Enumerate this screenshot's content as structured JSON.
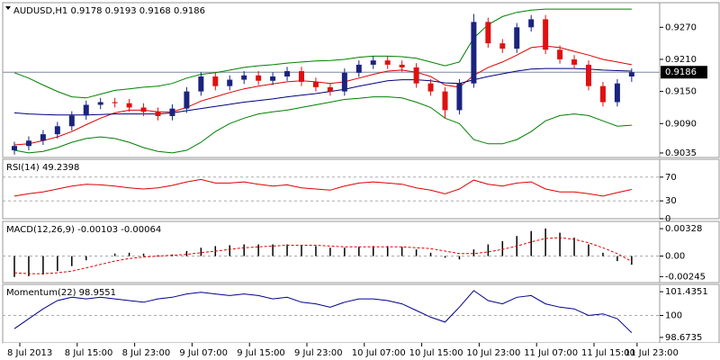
{
  "chart_data": [
    {
      "type": "candlestick",
      "title": "AUDUSD,H1  0.9178 0.9193 0.9168 0.9186",
      "categories": [
        "8 Jul 2013",
        null,
        null,
        null,
        "8 Jul 15:00",
        null,
        null,
        null,
        "8 Jul 23:00",
        null,
        null,
        null,
        "9 Jul 07:00",
        null,
        null,
        null,
        "9 Jul 15:00",
        null,
        null,
        null,
        "9 Jul 23:00",
        null,
        null,
        null,
        "10 Jul 07:00",
        null,
        null,
        null,
        "10 Jul 15:00",
        null,
        null,
        null,
        "10 Jul 23:00",
        null,
        null,
        null,
        "11 Jul 07:00",
        null,
        null,
        null,
        "11 Jul 15:00",
        null,
        null,
        "11 Jul 23:00"
      ],
      "open": [
        0.904,
        0.9048,
        0.9058,
        0.907,
        0.9085,
        0.9105,
        0.9125,
        0.913,
        0.9128,
        0.912,
        0.9112,
        0.9104,
        0.9118,
        0.915,
        0.9178,
        0.916,
        0.9172,
        0.918,
        0.917,
        0.9178,
        0.9188,
        0.9168,
        0.9158,
        0.915,
        0.9185,
        0.92,
        0.9208,
        0.92,
        0.9195,
        0.9165,
        0.915,
        0.9115,
        0.9165,
        0.928,
        0.924,
        0.923,
        0.927,
        0.9285,
        0.9228,
        0.921,
        0.92,
        0.916,
        0.913,
        0.9178
      ],
      "high": [
        0.9056,
        0.9066,
        0.9078,
        0.9093,
        0.9113,
        0.9133,
        0.9138,
        0.9138,
        0.9136,
        0.9128,
        0.912,
        0.9126,
        0.9158,
        0.9186,
        0.9186,
        0.918,
        0.9188,
        0.9188,
        0.9186,
        0.9196,
        0.9196,
        0.9176,
        0.9166,
        0.9193,
        0.9208,
        0.9216,
        0.9216,
        0.9208,
        0.9203,
        0.9173,
        0.9158,
        0.9173,
        0.9295,
        0.9288,
        0.9248,
        0.9278,
        0.9293,
        0.9293,
        0.9236,
        0.9218,
        0.9208,
        0.9168,
        0.9173,
        0.9193
      ],
      "low": [
        0.9032,
        0.904,
        0.905,
        0.9062,
        0.9077,
        0.9097,
        0.9117,
        0.912,
        0.9112,
        0.9104,
        0.9096,
        0.9096,
        0.911,
        0.9142,
        0.9152,
        0.9152,
        0.9164,
        0.9162,
        0.9162,
        0.917,
        0.916,
        0.915,
        0.9142,
        0.9142,
        0.9177,
        0.9192,
        0.9192,
        0.9187,
        0.9157,
        0.9142,
        0.91,
        0.9107,
        0.9157,
        0.9232,
        0.9222,
        0.9222,
        0.9262,
        0.922,
        0.9202,
        0.9192,
        0.9152,
        0.9122,
        0.9122,
        0.9168
      ],
      "close": [
        0.9048,
        0.9058,
        0.907,
        0.9085,
        0.9105,
        0.9125,
        0.913,
        0.9128,
        0.912,
        0.9112,
        0.9104,
        0.9118,
        0.915,
        0.9178,
        0.916,
        0.9172,
        0.918,
        0.917,
        0.9178,
        0.9188,
        0.9168,
        0.9158,
        0.915,
        0.9185,
        0.92,
        0.9208,
        0.92,
        0.9195,
        0.9165,
        0.915,
        0.9115,
        0.9165,
        0.928,
        0.924,
        0.923,
        0.927,
        0.9285,
        0.9228,
        0.921,
        0.92,
        0.916,
        0.913,
        0.9165,
        0.9186
      ],
      "up_color": "#1a237e",
      "down_color": "#e01010",
      "series": [
        {
          "color": "#008000",
          "style": "solid",
          "values": [
            0.9185,
            0.9175,
            0.9162,
            0.915,
            0.914,
            0.9138,
            0.9145,
            0.9152,
            0.9155,
            0.9158,
            0.916,
            0.9165,
            0.9175,
            0.9182,
            0.9185,
            0.919,
            0.9195,
            0.9198,
            0.92,
            0.9203,
            0.9205,
            0.9207,
            0.9208,
            0.921,
            0.9214,
            0.9216,
            0.9216,
            0.9215,
            0.9212,
            0.9205,
            0.9198,
            0.9205,
            0.925,
            0.9275,
            0.929,
            0.9298,
            0.9302,
            0.9304,
            0.9304,
            0.9304,
            0.9304,
            0.9304,
            0.9304,
            0.9304
          ]
        },
        {
          "color": "#008000",
          "style": "solid",
          "values": [
            0.904,
            0.9035,
            0.9038,
            0.9045,
            0.9055,
            0.9062,
            0.9065,
            0.9062,
            0.9055,
            0.9045,
            0.9038,
            0.9035,
            0.904,
            0.9055,
            0.9075,
            0.909,
            0.91,
            0.9108,
            0.9112,
            0.9115,
            0.912,
            0.9125,
            0.913,
            0.9135,
            0.9137,
            0.914,
            0.914,
            0.9138,
            0.913,
            0.912,
            0.91,
            0.909,
            0.906,
            0.9052,
            0.9052,
            0.906,
            0.9075,
            0.9095,
            0.9105,
            0.9108,
            0.9105,
            0.9095,
            0.9085,
            0.9087
          ]
        },
        {
          "color": "#e00000",
          "style": "solid",
          "values": [
            0.905,
            0.9052,
            0.9058,
            0.9065,
            0.9075,
            0.9088,
            0.91,
            0.911,
            0.9115,
            0.9115,
            0.9112,
            0.9112,
            0.912,
            0.9132,
            0.914,
            0.9148,
            0.9155,
            0.916,
            0.9164,
            0.9168,
            0.917,
            0.9168,
            0.9165,
            0.9168,
            0.9175,
            0.9182,
            0.9188,
            0.919,
            0.9186,
            0.9178,
            0.9162,
            0.9158,
            0.918,
            0.9195,
            0.9205,
            0.9218,
            0.9232,
            0.9235,
            0.9232,
            0.9225,
            0.9218,
            0.921,
            0.9205,
            0.92
          ]
        },
        {
          "color": "#000080",
          "style": "solid",
          "values": [
            0.911,
            0.9108,
            0.9107,
            0.9106,
            0.9106,
            0.9106,
            0.9107,
            0.9108,
            0.9108,
            0.9108,
            0.9108,
            0.911,
            0.9114,
            0.9118,
            0.9122,
            0.9126,
            0.913,
            0.9133,
            0.9136,
            0.914,
            0.9143,
            0.9146,
            0.915,
            0.9154,
            0.916,
            0.9165,
            0.917,
            0.9172,
            0.9172,
            0.917,
            0.9166,
            0.9165,
            0.9172,
            0.9178,
            0.9183,
            0.9188,
            0.9192,
            0.9193,
            0.9193,
            0.9193,
            0.9192,
            0.919,
            0.9189,
            0.9188
          ]
        }
      ],
      "last_price": {
        "value": 0.9186,
        "label": "0.9186"
      },
      "ylim": [
        0.90265,
        0.9316
      ],
      "yticks": [
        {
          "value": 0.927,
          "label": "0.9270"
        },
        {
          "value": 0.921,
          "label": "0.9210"
        },
        {
          "value": 0.915,
          "label": "0.9150"
        },
        {
          "value": 0.909,
          "label": "0.9090"
        },
        0.9035
      ]
    },
    {
      "type": "line",
      "title": "RSI(14) 49.2398",
      "series": [
        {
          "color": "#e00000",
          "style": "solid",
          "values": [
            38,
            42,
            45,
            50,
            55,
            58,
            57,
            55,
            52,
            50,
            52,
            56,
            62,
            66,
            60,
            60,
            62,
            58,
            55,
            57,
            52,
            50,
            48,
            55,
            60,
            62,
            60,
            58,
            52,
            48,
            42,
            50,
            65,
            58,
            55,
            60,
            62,
            50,
            45,
            45,
            42,
            38,
            44,
            49.2398
          ]
        }
      ],
      "levels": [
        70,
        30
      ],
      "ylim": [
        0,
        100
      ],
      "yticks": [
        70,
        30,
        0
      ]
    },
    {
      "type": "line",
      "title": "MACD(12,26,9) -0.00103 -0.00064",
      "series": [
        {
          "color": "#000000",
          "style": "bar",
          "values": [
            -0.0025,
            -0.0024,
            -0.0022,
            -0.0018,
            -0.0012,
            -0.0005,
            0.0,
            0.0003,
            0.0004,
            0.0003,
            0.0001,
            0.0002,
            0.0006,
            0.001,
            0.0012,
            0.0013,
            0.0014,
            0.0014,
            0.0014,
            0.0014,
            0.0013,
            0.0012,
            0.001,
            0.001,
            0.0011,
            0.0012,
            0.0012,
            0.0011,
            0.0008,
            0.0004,
            -0.0002,
            -0.0004,
            0.0008,
            0.0014,
            0.0018,
            0.0024,
            0.003,
            0.0033,
            0.0028,
            0.0022,
            0.0014,
            0.0004,
            -0.0006,
            -0.00103
          ]
        },
        {
          "color": "#e00000",
          "style": "dashed",
          "values": [
            -0.002,
            -0.0021,
            -0.0021,
            -0.002,
            -0.0018,
            -0.0014,
            -0.001,
            -0.0006,
            -0.0003,
            -0.0001,
            0.0,
            0.0001,
            0.0002,
            0.0004,
            0.0006,
            0.0008,
            0.001,
            0.0011,
            0.0012,
            0.0013,
            0.0013,
            0.0013,
            0.0012,
            0.0011,
            0.0011,
            0.0011,
            0.0011,
            0.0011,
            0.001,
            0.0009,
            0.0006,
            0.0003,
            0.0003,
            0.0005,
            0.0008,
            0.0012,
            0.0017,
            0.0021,
            0.0022,
            0.002,
            0.0016,
            0.001,
            0.0003,
            -0.00064
          ]
        }
      ],
      "levels": [
        0
      ],
      "ylim": [
        -0.00317,
        0.00415
      ],
      "yticks": [
        0.00328,
        {
          "value": 0,
          "label": "0.00"
        },
        -0.00245
      ]
    },
    {
      "type": "line",
      "title": "Momentum(22) 98.9551",
      "series": [
        {
          "color": "#00008b",
          "style": "solid",
          "values": [
            99.2,
            99.8,
            100.4,
            100.9,
            101.1,
            101.0,
            101.1,
            101.0,
            100.9,
            100.8,
            101.0,
            101.1,
            101.3,
            101.4,
            101.3,
            101.2,
            101.3,
            101.2,
            101.0,
            101.1,
            100.8,
            100.7,
            100.5,
            100.8,
            101.0,
            101.0,
            100.9,
            100.7,
            100.3,
            99.9,
            99.6,
            100.5,
            101.5,
            100.9,
            100.7,
            101.1,
            101.2,
            100.7,
            100.5,
            100.4,
            100.0,
            100.1,
            99.8,
            98.9551
          ]
        }
      ],
      "levels": [
        100
      ],
      "ylim": [
        98.342,
        101.877
      ],
      "yticks": [
        101.4351,
        100,
        98.6735
      ]
    }
  ]
}
